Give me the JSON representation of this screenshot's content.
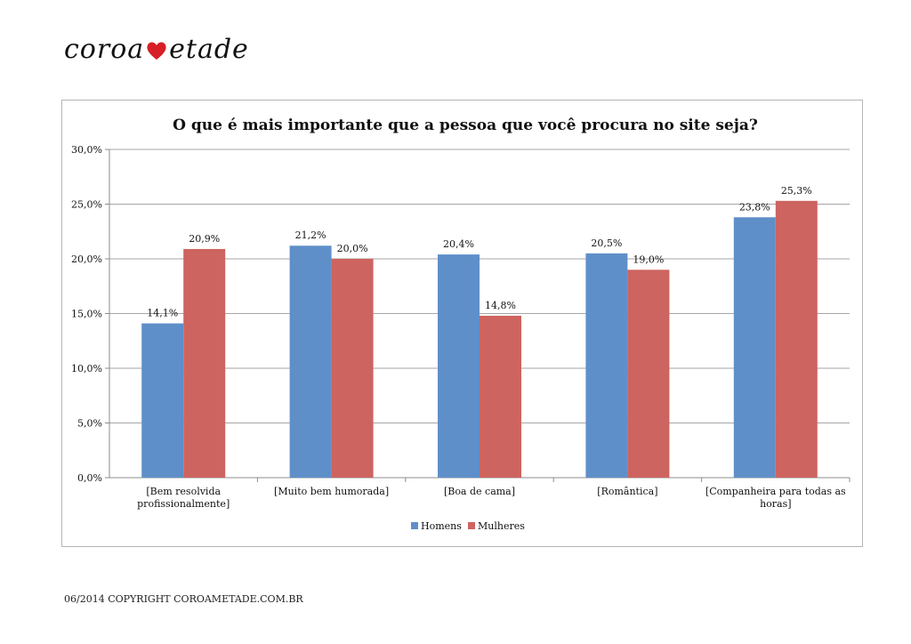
{
  "brand": {
    "logo_left": "coroa",
    "logo_right": "etade",
    "heart_color": "#d61f26"
  },
  "footer": {
    "copyright": "06/2014 COPYRIGHT COROAMETADE.COM.BR"
  },
  "chart_data": {
    "type": "bar",
    "title": "O que é mais importante que a pessoa que você procura no site seja?",
    "xlabel": "",
    "ylabel": "",
    "categories": [
      "[Bem resolvida profissionalmente]",
      "[Muito bem humorada]",
      "[Boa de cama]",
      "[Romântica]",
      "[Companheira para todas as horas]"
    ],
    "category_label_lines": [
      [
        "[Bem resolvida",
        "profissionalmente]"
      ],
      [
        "[Muito bem humorada]"
      ],
      [
        "[Boa de cama]"
      ],
      [
        "[Romântica]"
      ],
      [
        "[Companheira para todas as",
        "horas]"
      ]
    ],
    "series": [
      {
        "name": "Homens",
        "color": "#5f8fc9",
        "values": [
          14.1,
          21.2,
          20.4,
          20.5,
          23.8
        ],
        "labels": [
          "14,1%",
          "21,2%",
          "20,4%",
          "20,5%",
          "23,8%"
        ]
      },
      {
        "name": "Mulheres",
        "color": "#cd6460",
        "values": [
          20.9,
          20.0,
          14.8,
          19.0,
          25.3
        ],
        "labels": [
          "20,9%",
          "20,0%",
          "14,8%",
          "19,0%",
          "25,3%"
        ]
      }
    ],
    "ylim": [
      0,
      30
    ],
    "yticks": [
      0,
      5,
      10,
      15,
      20,
      25,
      30
    ],
    "ytick_labels": [
      "0,0%",
      "5,0%",
      "10,0%",
      "15,0%",
      "20,0%",
      "25,0%",
      "30,0%"
    ],
    "grid": true,
    "legend_position": "bottom"
  }
}
